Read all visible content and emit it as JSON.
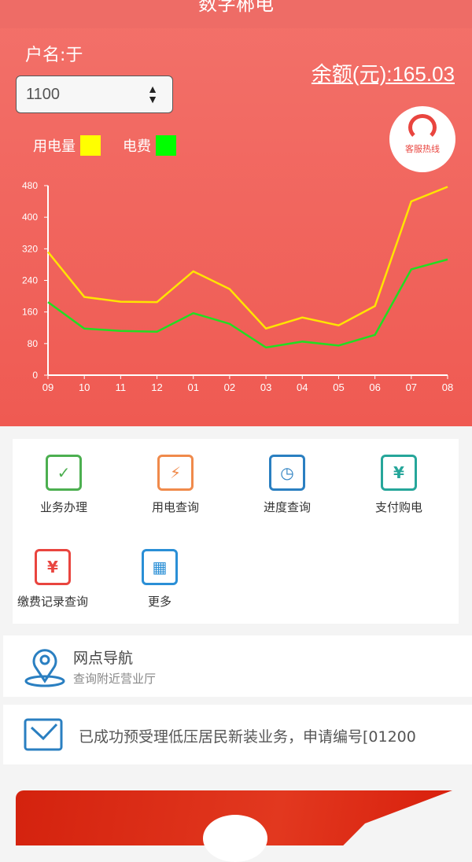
{
  "header": {
    "title": "数字郴电"
  },
  "account": {
    "user_label": "户名:于",
    "balance_label": "余额(元):165.03",
    "account_select_value": "1100"
  },
  "legend": {
    "usage": "用电量",
    "fee": "电费",
    "usage_color": "#ffff00",
    "fee_color": "#00ff00"
  },
  "hotline": {
    "label": "客服热线"
  },
  "chart_data": {
    "type": "line",
    "categories": [
      "09",
      "10",
      "11",
      "12",
      "01",
      "02",
      "03",
      "04",
      "05",
      "06",
      "07",
      "08"
    ],
    "yticks": [
      0,
      80,
      160,
      240,
      320,
      400,
      480
    ],
    "ylim": [
      0,
      480
    ],
    "series": [
      {
        "name": "用电量",
        "color": "#ffe400",
        "values": [
          312,
          198,
          186,
          185,
          263,
          218,
          118,
          146,
          126,
          175,
          440,
          477
        ]
      },
      {
        "name": "电费",
        "color": "#22dd22",
        "values": [
          185,
          118,
          112,
          110,
          157,
          130,
          70,
          85,
          75,
          102,
          268,
          293
        ]
      }
    ]
  },
  "services": [
    {
      "label": "业务办理",
      "icon": "business-icon",
      "color": "#4caf50"
    },
    {
      "label": "用电查询",
      "icon": "usage-query-icon",
      "color": "#f08a4b"
    },
    {
      "label": "进度查询",
      "icon": "progress-icon",
      "color": "#2a7fc1"
    },
    {
      "label": "支付购电",
      "icon": "pay-icon",
      "color": "#26a69a"
    },
    {
      "label": "缴费记录查询",
      "icon": "payment-record-icon",
      "color": "#e9453f"
    },
    {
      "label": "更多",
      "icon": "more-grid-icon",
      "color": "#2a8fd6"
    }
  ],
  "nav": {
    "title": "网点导航",
    "subtitle": "查询附近营业厅"
  },
  "message": {
    "text": "已成功预受理低压居民新装业务，申请编号[01200"
  }
}
